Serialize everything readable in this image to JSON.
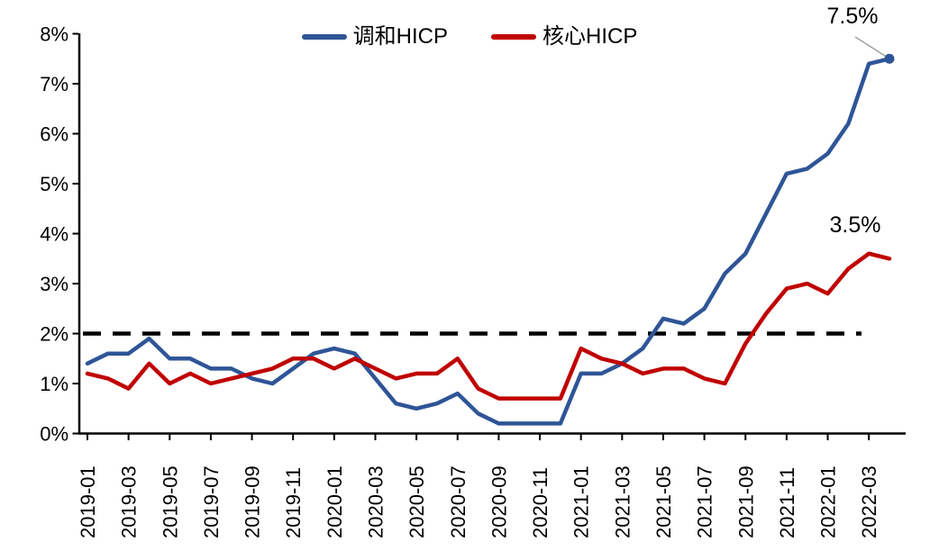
{
  "chart_data": {
    "type": "line",
    "title": "",
    "x": [
      "2019-01",
      "2019-02",
      "2019-03",
      "2019-04",
      "2019-05",
      "2019-06",
      "2019-07",
      "2019-08",
      "2019-09",
      "2019-10",
      "2019-11",
      "2019-12",
      "2020-01",
      "2020-02",
      "2020-03",
      "2020-04",
      "2020-05",
      "2020-06",
      "2020-07",
      "2020-08",
      "2020-09",
      "2020-10",
      "2020-11",
      "2020-12",
      "2021-01",
      "2021-02",
      "2021-03",
      "2021-04",
      "2021-05",
      "2021-06",
      "2021-07",
      "2021-08",
      "2021-09",
      "2021-10",
      "2021-11",
      "2021-12",
      "2022-01",
      "2022-02",
      "2022-03",
      "2022-04"
    ],
    "x_tick_labels": [
      "2019-01",
      "2019-03",
      "2019-05",
      "2019-07",
      "2019-09",
      "2019-11",
      "2020-01",
      "2020-03",
      "2020-05",
      "2020-07",
      "2020-09",
      "2020-11",
      "2021-01",
      "2021-03",
      "2021-05",
      "2021-07",
      "2021-09",
      "2021-11",
      "2022-01",
      "2022-03"
    ],
    "y_tick_labels": [
      "0%",
      "1%",
      "2%",
      "3%",
      "4%",
      "5%",
      "6%",
      "7%",
      "8%"
    ],
    "ylim": [
      0,
      8
    ],
    "grid": false,
    "legend_position": "top-center",
    "series": [
      {
        "name": "调和HICP",
        "color": "#2F5597",
        "values": [
          1.4,
          1.6,
          1.6,
          1.9,
          1.5,
          1.5,
          1.3,
          1.3,
          1.1,
          1.0,
          1.3,
          1.6,
          1.7,
          1.6,
          1.1,
          0.6,
          0.5,
          0.6,
          0.8,
          0.4,
          0.2,
          0.2,
          0.2,
          0.2,
          1.2,
          1.2,
          1.4,
          1.7,
          2.3,
          2.2,
          2.5,
          3.2,
          3.6,
          4.4,
          5.2,
          5.3,
          5.6,
          6.2,
          7.4,
          7.5
        ]
      },
      {
        "name": "核心HICP",
        "color": "#C00000",
        "values": [
          1.2,
          1.1,
          0.9,
          1.4,
          1.0,
          1.2,
          1.0,
          1.1,
          1.2,
          1.3,
          1.5,
          1.5,
          1.3,
          1.5,
          1.3,
          1.1,
          1.2,
          1.2,
          1.5,
          0.9,
          0.7,
          0.7,
          0.7,
          0.7,
          1.7,
          1.5,
          1.4,
          1.2,
          1.3,
          1.3,
          1.1,
          1.0,
          1.8,
          2.4,
          2.9,
          3.0,
          2.8,
          3.3,
          3.6,
          3.5
        ]
      }
    ],
    "reference_line": {
      "value": 2,
      "style": "dashed",
      "color": "#000000"
    },
    "annotations": [
      {
        "text": "7.5%",
        "series": "调和HICP",
        "x": "2022-04",
        "value": 7.5
      },
      {
        "text": "3.5%",
        "series": "核心HICP",
        "x": "2022-04",
        "value": 3.5
      }
    ]
  },
  "colors": {
    "axis": "#000000",
    "leader_line": "#A0A0A0",
    "background": "#FFFFFF"
  }
}
